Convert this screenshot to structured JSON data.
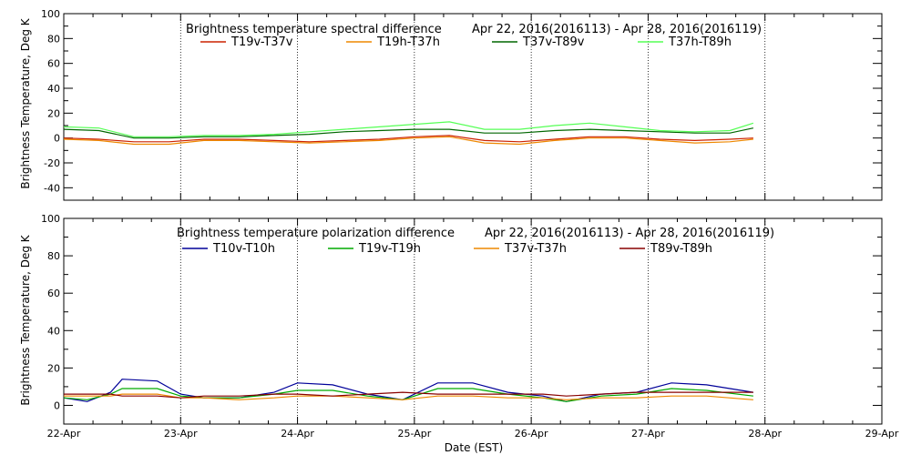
{
  "chart_data": [
    {
      "type": "line",
      "title": "Brightness temperature spectral difference",
      "date_range": "Apr 22, 2016(2016113) - Apr 28, 2016(2016119)",
      "ylabel": "Brightness Temperature, Deg K",
      "xlabel": "",
      "x_unit": "days since Apr 22 00:00 EST",
      "xlim": [
        0,
        7
      ],
      "ylim": [
        -50,
        100
      ],
      "yticks": [
        -40,
        -20,
        0,
        20,
        40,
        60,
        80,
        100
      ],
      "grid": "vertical dotted at day boundaries",
      "legend_position": "top",
      "series": [
        {
          "name": "T19v-T37v",
          "color": "#cc2200",
          "x": [
            0,
            0.3,
            0.6,
            0.9,
            1.2,
            1.5,
            1.8,
            2.1,
            2.4,
            2.7,
            3.0,
            3.3,
            3.6,
            3.9,
            4.2,
            4.5,
            4.8,
            5.1,
            5.4,
            5.7,
            5.9
          ],
          "y": [
            0,
            -1,
            -3,
            -3,
            -1,
            -1,
            -2,
            -3,
            -2,
            -1,
            1,
            2,
            -2,
            -3,
            -1,
            1,
            1,
            -1,
            -2,
            -1,
            0
          ]
        },
        {
          "name": "T19h-T37h",
          "color": "#ee8800",
          "x": [
            0,
            0.3,
            0.6,
            0.9,
            1.2,
            1.5,
            1.8,
            2.1,
            2.4,
            2.7,
            3.0,
            3.3,
            3.6,
            3.9,
            4.2,
            4.5,
            4.8,
            5.1,
            5.4,
            5.7,
            5.9
          ],
          "y": [
            -1,
            -2,
            -5,
            -5,
            -2,
            -2,
            -3,
            -4,
            -3,
            -2,
            0,
            1,
            -4,
            -5,
            -2,
            0,
            0,
            -2,
            -4,
            -3,
            -1
          ]
        },
        {
          "name": "T37v-T89v",
          "color": "#006600",
          "x": [
            0,
            0.3,
            0.6,
            0.9,
            1.2,
            1.5,
            1.8,
            2.1,
            2.4,
            2.7,
            3.0,
            3.3,
            3.6,
            3.9,
            4.2,
            4.5,
            4.8,
            5.1,
            5.4,
            5.7,
            5.9
          ],
          "y": [
            7,
            6,
            0,
            0,
            1,
            1,
            2,
            3,
            5,
            6,
            7,
            7,
            4,
            4,
            6,
            7,
            6,
            5,
            4,
            4,
            8
          ]
        },
        {
          "name": "T37h-T89h",
          "color": "#55ff55",
          "x": [
            0,
            0.3,
            0.6,
            0.9,
            1.2,
            1.5,
            1.8,
            2.1,
            2.4,
            2.7,
            3.0,
            3.3,
            3.6,
            3.9,
            4.2,
            4.5,
            4.8,
            5.1,
            5.4,
            5.7,
            5.9
          ],
          "y": [
            9,
            8,
            1,
            1,
            2,
            2,
            3,
            5,
            7,
            9,
            11,
            13,
            7,
            7,
            10,
            12,
            9,
            6,
            5,
            6,
            12
          ]
        }
      ]
    },
    {
      "type": "line",
      "title": "Brightness temperature polarization difference",
      "date_range": "Apr 22, 2016(2016113) - Apr 28, 2016(2016119)",
      "ylabel": "Brightness Temperature, Deg K",
      "xlabel": "Date (EST)",
      "x_unit": "days since Apr 22 00:00 EST",
      "xlim": [
        0,
        7
      ],
      "ylim": [
        -10,
        100
      ],
      "yticks": [
        0,
        20,
        40,
        60,
        80,
        100
      ],
      "xticks": [
        "22-Apr",
        "23-Apr",
        "24-Apr",
        "25-Apr",
        "26-Apr",
        "27-Apr",
        "28-Apr",
        "29-Apr"
      ],
      "grid": "vertical dotted at day boundaries",
      "legend_position": "top",
      "series": [
        {
          "name": "T10v-T10h",
          "color": "#000099",
          "x": [
            0,
            0.2,
            0.4,
            0.5,
            0.8,
            1.0,
            1.2,
            1.5,
            1.8,
            2.0,
            2.3,
            2.6,
            2.9,
            3.2,
            3.5,
            3.8,
            4.1,
            4.3,
            4.6,
            4.9,
            5.2,
            5.5,
            5.9
          ],
          "y": [
            4,
            2,
            7,
            14,
            13,
            6,
            4,
            4,
            7,
            12,
            11,
            6,
            3,
            12,
            12,
            7,
            5,
            2,
            6,
            7,
            12,
            11,
            7
          ]
        },
        {
          "name": "T19v-T19h",
          "color": "#00aa00",
          "x": [
            0,
            0.2,
            0.4,
            0.5,
            0.8,
            1.0,
            1.2,
            1.5,
            1.8,
            2.0,
            2.3,
            2.6,
            2.9,
            3.2,
            3.5,
            3.8,
            4.1,
            4.3,
            4.6,
            4.9,
            5.2,
            5.5,
            5.9
          ],
          "y": [
            4,
            3,
            6,
            9,
            9,
            5,
            4,
            4,
            6,
            8,
            8,
            5,
            3,
            9,
            9,
            6,
            4,
            2,
            5,
            6,
            9,
            8,
            5
          ]
        },
        {
          "name": "T37v-T37h",
          "color": "#ee8800",
          "x": [
            0,
            0.2,
            0.4,
            0.5,
            0.8,
            1.0,
            1.2,
            1.5,
            1.8,
            2.0,
            2.3,
            2.6,
            2.9,
            3.2,
            3.5,
            3.8,
            4.1,
            4.3,
            4.6,
            4.9,
            5.2,
            5.5,
            5.9
          ],
          "y": [
            5,
            5,
            5,
            6,
            6,
            4,
            4,
            3,
            4,
            5,
            5,
            4,
            3,
            5,
            5,
            4,
            4,
            3,
            4,
            4,
            5,
            5,
            3
          ]
        },
        {
          "name": "T89v-T89h",
          "color": "#880000",
          "x": [
            0,
            0.2,
            0.4,
            0.5,
            0.8,
            1.0,
            1.2,
            1.5,
            1.8,
            2.0,
            2.3,
            2.6,
            2.9,
            3.2,
            3.5,
            3.8,
            4.1,
            4.3,
            4.6,
            4.9,
            5.2,
            5.5,
            5.9
          ],
          "y": [
            6,
            6,
            6,
            5,
            5,
            4,
            5,
            5,
            6,
            6,
            5,
            6,
            7,
            6,
            6,
            6,
            6,
            5,
            6,
            7,
            7,
            7,
            7
          ]
        }
      ]
    }
  ]
}
